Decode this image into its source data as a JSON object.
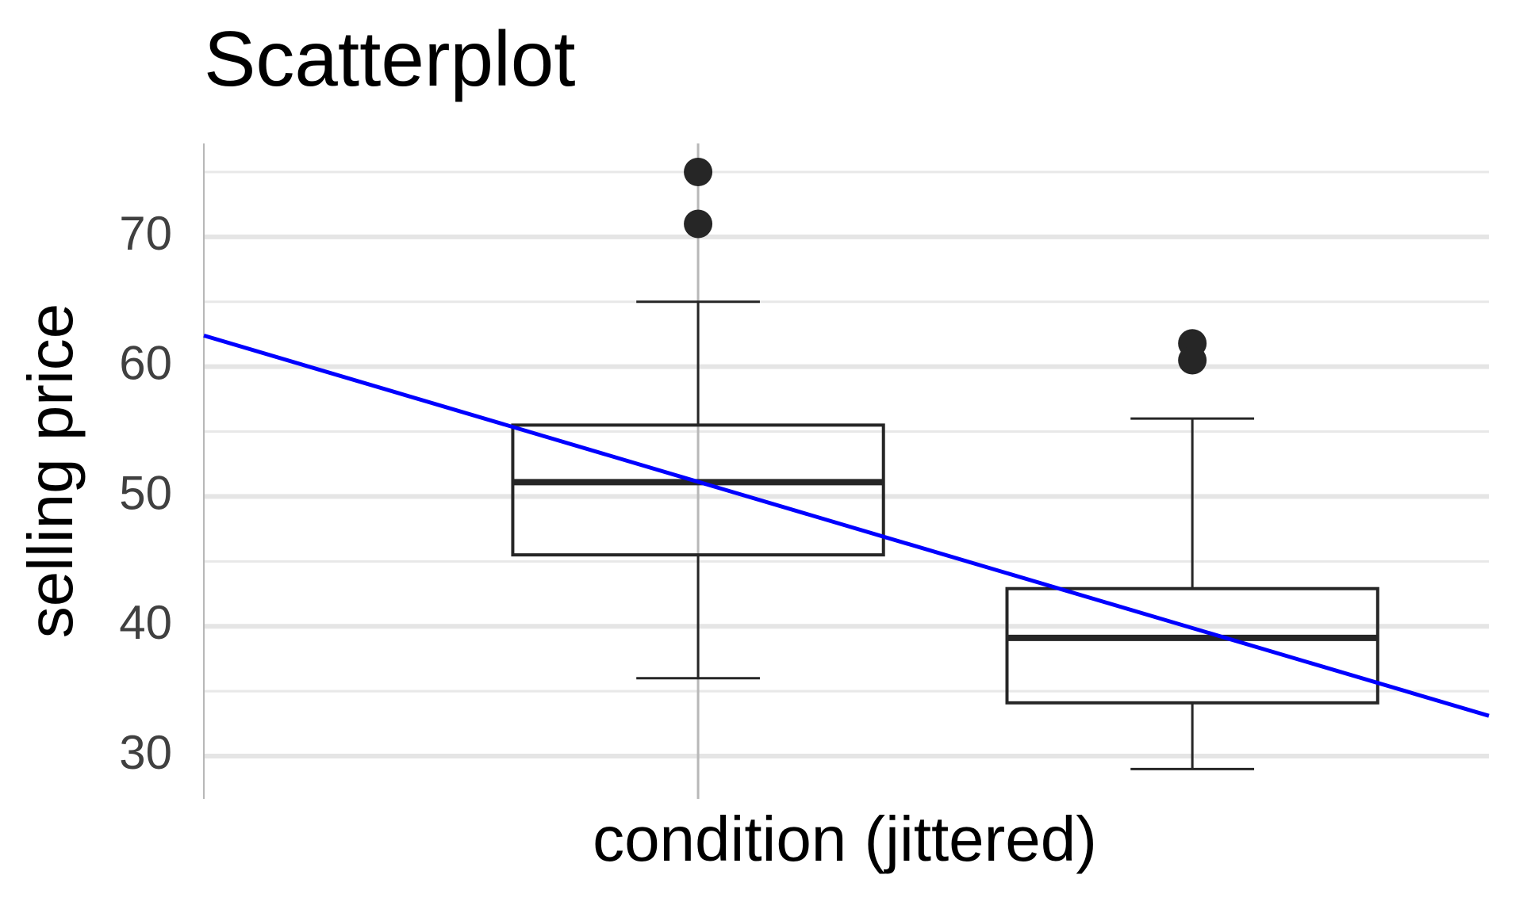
{
  "chart_data": {
    "type": "box",
    "title": "Scatterplot",
    "x_label": "condition (jittered)",
    "y_label": "selling price",
    "x": [
      1,
      2
    ],
    "xlim": [
      0,
      2.6
    ],
    "xticks": [
      1
    ],
    "ylim": [
      26.7,
      77.2
    ],
    "yticks": [
      30,
      40,
      50,
      60,
      70
    ],
    "yminor": [
      35,
      45,
      55,
      65,
      75
    ],
    "grid": true,
    "boxes": [
      {
        "min": 36,
        "q1": 45.5,
        "median": 51.1,
        "q3": 55.5,
        "max": 65,
        "outliers": [
          75,
          71
        ]
      },
      {
        "min": 29,
        "q1": 34.1,
        "median": 39.1,
        "q3": 42.9,
        "max": 56,
        "outliers": [
          61.8,
          60.5
        ]
      }
    ],
    "box_color": "#262626",
    "fit": {
      "color": "#0000ff",
      "x": [
        0,
        2.6
      ],
      "y": [
        62.4,
        33.1
      ]
    }
  }
}
